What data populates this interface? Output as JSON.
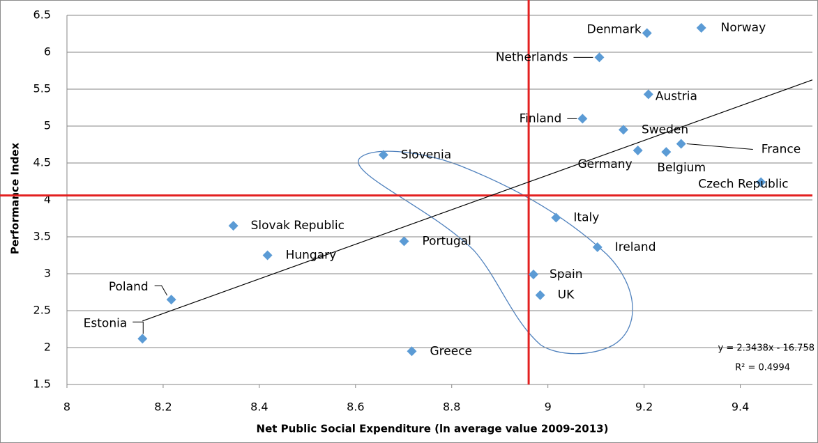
{
  "chart_data": {
    "type": "scatter",
    "x_label": "Net Public Social Expenditure (ln average value 2009-2013)",
    "y_label": "Performance Index",
    "xlim": [
      8,
      9.55
    ],
    "xticks": [
      8,
      8.2,
      8.4,
      8.6,
      8.8,
      9,
      9.2,
      9.4
    ],
    "ylim": [
      1.5,
      6.5
    ],
    "yticks": [
      1.5,
      2,
      2.5,
      3,
      3.5,
      4,
      4.5,
      5,
      5.5,
      6,
      6.5
    ],
    "grid": true,
    "color": "#5b9bd5",
    "labels": [
      "Denmark",
      "Norway",
      "Netherlands",
      "Austria",
      "Finland",
      "Sweden",
      "France",
      "Germany",
      "Belgium",
      "Czech Republic",
      "Slovenia",
      "Slovak Republic",
      "Hungary",
      "Portugal",
      "Italy",
      "Ireland",
      "Spain",
      "UK",
      "Poland",
      "Estonia",
      "Greece"
    ],
    "x": [
      9.206,
      9.319,
      9.107,
      9.209,
      9.072,
      9.157,
      9.277,
      9.187,
      9.246,
      9.443,
      8.658,
      8.346,
      8.417,
      8.701,
      9.017,
      9.103,
      8.97,
      8.984,
      8.217,
      8.157,
      8.717
    ],
    "values": [
      6.26,
      6.33,
      5.93,
      5.43,
      5.1,
      4.95,
      4.76,
      4.67,
      4.65,
      4.24,
      4.61,
      3.65,
      3.25,
      3.44,
      3.76,
      3.36,
      2.99,
      2.71,
      2.65,
      2.12,
      1.95
    ],
    "trendline": {
      "equation": "y = 2.3438x - 16.758",
      "r_squared": "R² = 0.4994",
      "slope": 2.3438,
      "intercept": -16.758,
      "color": "#000000"
    },
    "reference_lines": [
      {
        "axis": "x",
        "value": 8.96,
        "color": "#e32020"
      },
      {
        "axis": "y",
        "value": 4.06,
        "color": "#e32020"
      }
    ]
  }
}
